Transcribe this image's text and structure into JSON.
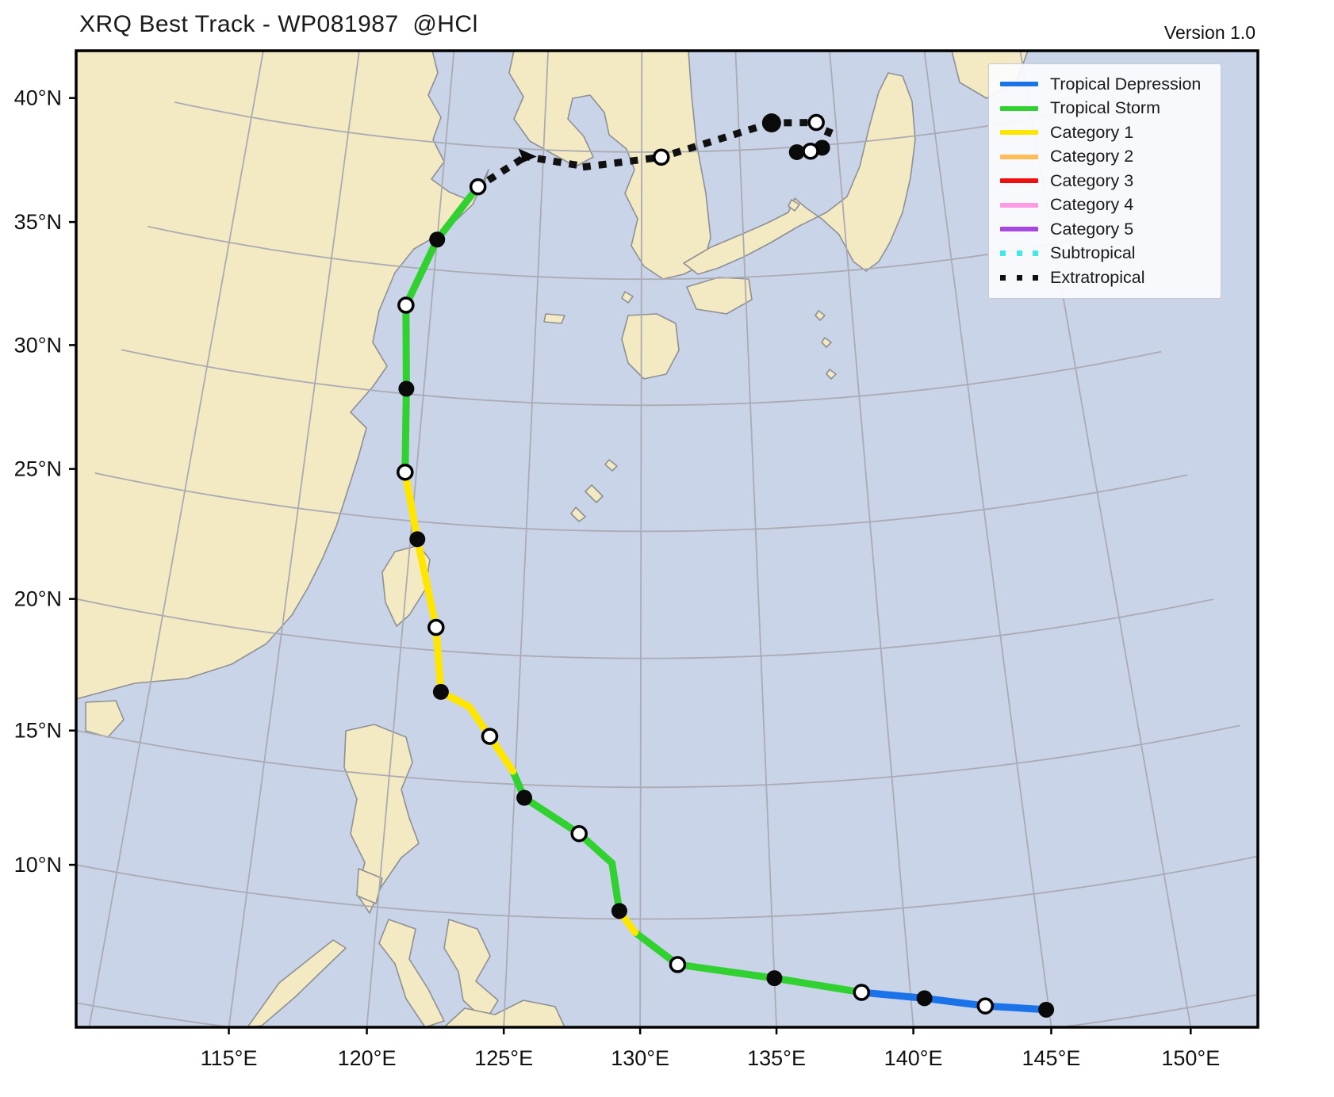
{
  "header": {
    "title": "XRQ Best Track - WP081987  @HCl",
    "version": "Version 1.0"
  },
  "chart_data": {
    "type": "line",
    "subtype": "tropical-cyclone-best-track",
    "storm_id": "WP081987",
    "grid": true,
    "x_axis": {
      "ticks": [
        115,
        120,
        125,
        130,
        135,
        140,
        145,
        150
      ],
      "tick_labels": [
        "115°E",
        "120°E",
        "125°E",
        "130°E",
        "135°E",
        "140°E",
        "145°E",
        "150°E"
      ]
    },
    "y_axis": {
      "ticks": [
        10,
        15,
        20,
        25,
        30,
        35,
        40
      ],
      "tick_labels": [
        "10°N",
        "15°N",
        "20°N",
        "25°N",
        "30°N",
        "35°N",
        "40°N"
      ]
    },
    "legend": {
      "position": "top-right",
      "entries": [
        {
          "label": "Tropical Depression",
          "color": "#1a73e8",
          "style": "solid"
        },
        {
          "label": "Tropical Storm",
          "color": "#30d130",
          "style": "solid"
        },
        {
          "label": "Category 1",
          "color": "#ffe600",
          "style": "solid"
        },
        {
          "label": "Category 2",
          "color": "#ffbb55",
          "style": "solid"
        },
        {
          "label": "Category 3",
          "color": "#f01010",
          "style": "solid"
        },
        {
          "label": "Category 4",
          "color": "#ff9ae5",
          "style": "solid"
        },
        {
          "label": "Category 5",
          "color": "#a648e0",
          "style": "solid"
        },
        {
          "label": "Subtropical",
          "color": "#45e8e8",
          "style": "dotted"
        },
        {
          "label": "Extratropical",
          "color": "#111111",
          "style": "dotted"
        }
      ]
    },
    "status_colors": {
      "tropical-depression": "#1a73e8",
      "tropical-storm": "#30d130",
      "category-1": "#ffe600",
      "extratropical": "#111111"
    },
    "track": {
      "points": [
        {
          "lon": 144.9,
          "lat": 5.7,
          "status": "tropical-depression",
          "marker": "filled",
          "seg": "tropical-depression"
        },
        {
          "lon": 142.7,
          "lat": 6.1,
          "status": "tropical-depression",
          "marker": "open",
          "seg": "tropical-depression"
        },
        {
          "lon": 140.5,
          "lat": 6.6,
          "status": "tropical-depression",
          "marker": "filled",
          "seg": "tropical-depression"
        },
        {
          "lon": 138.2,
          "lat": 7.0,
          "status": "tropical-storm",
          "marker": "open",
          "seg": "tropical-storm"
        },
        {
          "lon": 135.0,
          "lat": 7.7,
          "status": "tropical-storm",
          "marker": "filled",
          "seg": "tropical-storm"
        },
        {
          "lon": 131.4,
          "lat": 8.3,
          "status": "tropical-storm",
          "marker": "open",
          "seg": "tropical-storm"
        },
        {
          "lon": 129.8,
          "lat": 9.5,
          "status": "category-1",
          "marker": "none",
          "seg": "category-1"
        },
        {
          "lon": 129.2,
          "lat": 10.3,
          "status": "tropical-storm",
          "marker": "filled",
          "seg": "tropical-storm"
        },
        {
          "lon": 128.9,
          "lat": 12.1,
          "status": "tropical-storm",
          "marker": "none",
          "seg": "tropical-storm"
        },
        {
          "lon": 127.6,
          "lat": 13.2,
          "status": "tropical-storm",
          "marker": "open",
          "seg": "tropical-storm"
        },
        {
          "lon": 125.4,
          "lat": 14.5,
          "status": "tropical-storm",
          "marker": "filled",
          "seg": "tropical-storm"
        },
        {
          "lon": 124.9,
          "lat": 15.5,
          "status": "category-1",
          "marker": "none",
          "seg": "category-1"
        },
        {
          "lon": 123.9,
          "lat": 16.8,
          "status": "category-1",
          "marker": "open",
          "seg": "category-1"
        },
        {
          "lon": 123.0,
          "lat": 17.9,
          "status": "category-1",
          "marker": "none",
          "seg": "category-1"
        },
        {
          "lon": 121.8,
          "lat": 18.4,
          "status": "category-1",
          "marker": "filled",
          "seg": "category-1"
        },
        {
          "lon": 121.4,
          "lat": 20.9,
          "status": "category-1",
          "marker": "open",
          "seg": "category-1"
        },
        {
          "lon": 120.3,
          "lat": 24.3,
          "status": "category-1",
          "marker": "filled",
          "seg": "category-1"
        },
        {
          "lon": 119.5,
          "lat": 26.9,
          "status": "tropical-storm",
          "marker": "open",
          "seg": "tropical-storm"
        },
        {
          "lon": 119.2,
          "lat": 30.2,
          "status": "tropical-storm",
          "marker": "filled",
          "seg": "tropical-storm"
        },
        {
          "lon": 118.8,
          "lat": 33.5,
          "status": "tropical-storm",
          "marker": "open",
          "seg": "tropical-storm"
        },
        {
          "lon": 120.0,
          "lat": 36.2,
          "status": "tropical-storm",
          "marker": "filled",
          "seg": "tropical-storm"
        },
        {
          "lon": 121.8,
          "lat": 38.4,
          "status": "tropical-storm",
          "marker": "open",
          "seg": "extratropical"
        },
        {
          "lon": 124.1,
          "lat": 39.7,
          "status": "extratropical",
          "marker": "arrow",
          "seg": "extratropical"
        },
        {
          "lon": 127.2,
          "lat": 39.4,
          "status": "extratropical",
          "marker": "none",
          "seg": "extratropical"
        },
        {
          "lon": 131.0,
          "lat": 39.8,
          "status": "extratropical",
          "marker": "open",
          "seg": "extratropical"
        },
        {
          "lon": 136.7,
          "lat": 41.0,
          "status": "extratropical",
          "marker": "filled-large",
          "seg": "extratropical"
        },
        {
          "lon": 139.0,
          "lat": 40.9,
          "status": "extratropical",
          "marker": "open",
          "seg": "extratropical"
        },
        {
          "lon": 139.6,
          "lat": 40.5,
          "status": "extratropical",
          "marker": "none",
          "seg": "extratropical"
        },
        {
          "lon": 139.2,
          "lat": 39.9,
          "status": "extratropical",
          "marker": "filled",
          "seg": "extratropical"
        },
        {
          "lon": 138.6,
          "lat": 39.8,
          "status": "extratropical",
          "marker": "open",
          "seg": "extratropical"
        },
        {
          "lon": 137.9,
          "lat": 39.8,
          "status": "extratropical",
          "marker": "filled",
          "seg": null
        }
      ]
    },
    "map": {
      "sea_color": "#c9d4e8",
      "land_color": "#f3e9c3",
      "coast_color": "#8e9094",
      "grid_color": "#ababb3",
      "frame_color": "#000000"
    }
  }
}
